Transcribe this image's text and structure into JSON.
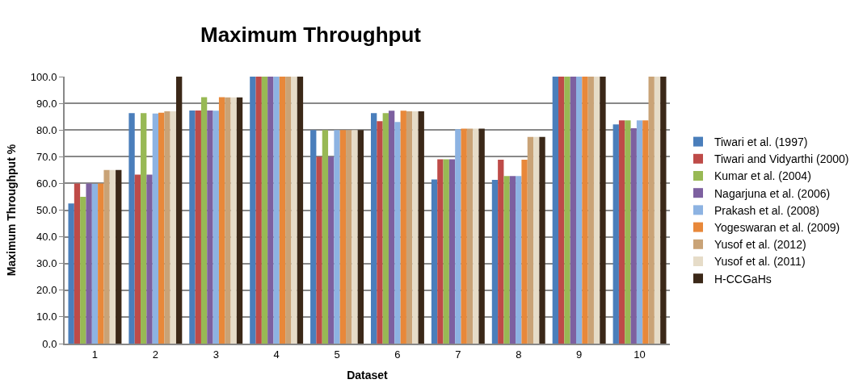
{
  "chart_data": {
    "type": "bar",
    "title": "Maximum Throughput",
    "xlabel": "Dataset",
    "ylabel": "Maximum Throughput %",
    "categories": [
      "1",
      "2",
      "3",
      "4",
      "5",
      "6",
      "7",
      "8",
      "9",
      "10"
    ],
    "series": [
      {
        "name": "Tiwari et al. (1997)",
        "color": "#4a7ebb",
        "values": [
          52.5,
          86.3,
          87.3,
          100,
          80,
          86.3,
          61.5,
          61.3,
          100,
          82.1
        ]
      },
      {
        "name": "Tiwari and Vidyarthi (2000)",
        "color": "#be4b48",
        "values": [
          60,
          63.3,
          87.3,
          100,
          70,
          83.3,
          69,
          68.9,
          100,
          83.6
        ]
      },
      {
        "name": "Kumar et al. (2004)",
        "color": "#98b954",
        "values": [
          55,
          86.3,
          92.3,
          100,
          80,
          86.3,
          69,
          62.8,
          100,
          83.6
        ]
      },
      {
        "name": "Nagarjuna et al. (2006)",
        "color": "#7d60a0",
        "values": [
          60,
          63.3,
          87.3,
          100,
          70,
          87.2,
          69,
          62.8,
          100,
          80.7
        ]
      },
      {
        "name": "Prakash et al. (2008)",
        "color": "#8db3e2",
        "values": [
          59.8,
          86.2,
          87.2,
          100,
          80,
          83,
          80.3,
          62.8,
          100,
          83.6
        ]
      },
      {
        "name": "Yogeswaran et al. (2009)",
        "color": "#e8883a",
        "values": [
          60,
          86.5,
          92.3,
          100,
          80,
          87.2,
          80.5,
          68.9,
          100,
          83.6
        ]
      },
      {
        "name": "Yusof et al. (2012)",
        "color": "#c9a377",
        "values": [
          65,
          87,
          92.2,
          100,
          80,
          87,
          80.5,
          77.4,
          100,
          100
        ]
      },
      {
        "name": "Yusof et al. (2011)",
        "color": "#e6dcc8",
        "values": [
          65,
          87,
          92.2,
          100,
          80,
          87,
          80.5,
          77.4,
          100,
          100
        ]
      },
      {
        "name": "H-CCGaHs",
        "color": "#3b2818",
        "values": [
          65,
          100,
          92.2,
          100,
          80,
          87,
          80.5,
          77.4,
          100,
          100
        ]
      }
    ],
    "ylim": [
      0,
      100
    ],
    "yticks": [
      {
        "value": 0,
        "label": "0.0"
      },
      {
        "value": 10,
        "label": "10.0"
      },
      {
        "value": 20,
        "label": "20.0"
      },
      {
        "value": 30,
        "label": "30.0"
      },
      {
        "value": 40,
        "label": "40.0"
      },
      {
        "value": 50,
        "label": "50.0"
      },
      {
        "value": 60,
        "label": "60.0"
      },
      {
        "value": 70,
        "label": "70.0"
      },
      {
        "value": 80,
        "label": "80.0"
      },
      {
        "value": 90,
        "label": "90.0"
      },
      {
        "value": 100,
        "label": "100.0"
      }
    ],
    "grid": "y",
    "legend": "right"
  }
}
